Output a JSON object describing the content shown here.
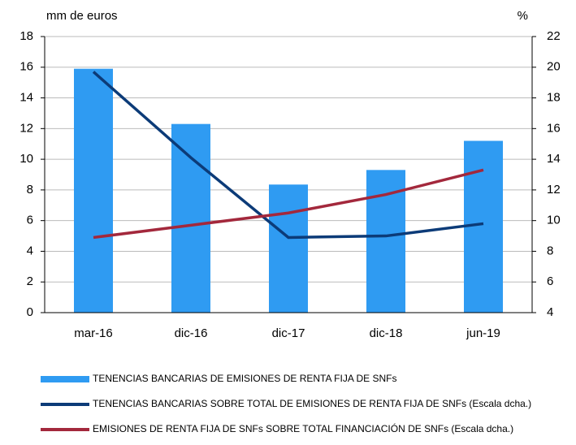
{
  "chart_data": {
    "type": "bar_line",
    "y_label": "mm de euros",
    "y2_label": "%",
    "categories": [
      "mar-16",
      "dic-16",
      "dic-17",
      "dic-18",
      "jun-19"
    ],
    "series": [
      {
        "name": "TENENCIAS BANCARIAS DE EMISIONES DE RENTA FIJA DE SNFs",
        "type": "bar",
        "color": "#2f9bf2",
        "values": [
          15.9,
          12.3,
          8.35,
          9.3,
          11.2
        ]
      },
      {
        "name": "TENENCIAS BANCARIAS SOBRE TOTAL DE EMISIONES DE RENTA FIJA DE SNFs (Escala dcha.)",
        "type": "line",
        "axis": "y2",
        "color": "#0c3b78",
        "values": [
          19.7,
          14.1,
          8.9,
          9.0,
          9.8
        ]
      },
      {
        "name": "EMISIONES DE RENTA FIJA DE SNFs SOBRE TOTAL FINANCIACIÓN DE SNFs (Escala dcha.)",
        "type": "line",
        "axis": "y2",
        "color": "#a3283c",
        "values": [
          8.9,
          9.7,
          10.5,
          11.7,
          13.3
        ]
      }
    ],
    "ylim": [
      0,
      18
    ],
    "yticks": [
      0,
      2,
      4,
      6,
      8,
      10,
      12,
      14,
      16,
      18
    ],
    "y2lim": [
      4,
      22
    ],
    "y2ticks": [
      4,
      6,
      8,
      10,
      12,
      14,
      16,
      18,
      20,
      22
    ],
    "grid": true,
    "legend": "bottom"
  }
}
